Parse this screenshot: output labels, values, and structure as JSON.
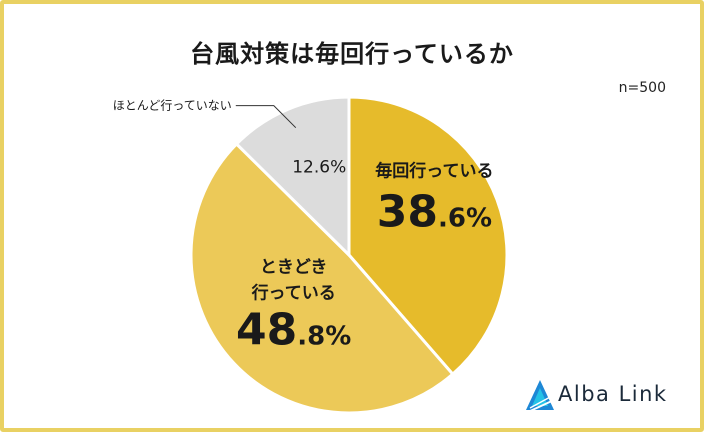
{
  "chart_data": {
    "type": "pie",
    "title": "台風対策は毎回行っているか",
    "sample_note": "n=500",
    "slices": [
      {
        "label": "毎回行っている",
        "value": 38.6,
        "display": "38.6%",
        "color": "#e6bb2b"
      },
      {
        "label": "ときどき行っている",
        "label_lines": [
          "ときどき",
          "行っている"
        ],
        "value": 48.8,
        "display": "48.8%",
        "color": "#ecc958"
      },
      {
        "label": "ほとんど行っていない",
        "value": 12.6,
        "display": "12.6%",
        "color": "#dcdcdc"
      }
    ]
  },
  "brand": {
    "name": "Alba Link",
    "colors": [
      "#1e88d6",
      "#25c2e6"
    ]
  }
}
